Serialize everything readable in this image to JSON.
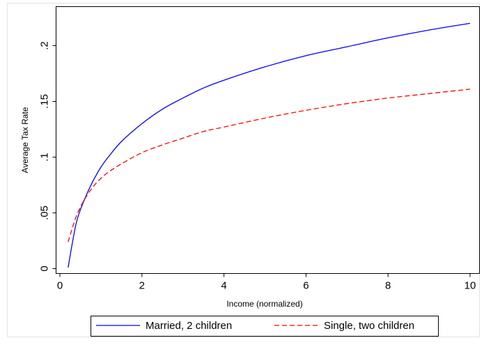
{
  "chart_data": {
    "type": "line",
    "title": "",
    "xlabel": "Income (normalized)",
    "ylabel": "Average Tax Rate",
    "xlim": [
      0,
      10
    ],
    "ylim": [
      0,
      0.22
    ],
    "x_ticks": [
      0,
      2,
      4,
      6,
      8,
      10
    ],
    "x_tick_labels": [
      "0",
      "2",
      "4",
      "6",
      "8",
      "10"
    ],
    "y_ticks": [
      0,
      0.05,
      0.1,
      0.15,
      0.2
    ],
    "y_tick_labels": [
      "0",
      ".05",
      ".1",
      ".15",
      ".2"
    ],
    "grid": false,
    "legend_position": "bottom",
    "series": [
      {
        "name": "Married, 2 children",
        "color": "#0000ff",
        "dash": "solid",
        "x": [
          0.2,
          0.4,
          0.6,
          0.8,
          1.0,
          1.2,
          1.5,
          2.0,
          2.5,
          3.0,
          3.5,
          4.0,
          5.0,
          6.0,
          7.0,
          8.0,
          9.0,
          10.0
        ],
        "y": [
          0.001,
          0.041,
          0.062,
          0.078,
          0.091,
          0.101,
          0.114,
          0.13,
          0.143,
          0.153,
          0.162,
          0.169,
          0.181,
          0.191,
          0.199,
          0.207,
          0.214,
          0.22
        ]
      },
      {
        "name": "Single, two children",
        "color": "#ff0000",
        "dash": "dashed",
        "x": [
          0.2,
          0.4,
          0.6,
          0.8,
          1.0,
          1.2,
          1.5,
          2.0,
          2.5,
          3.0,
          3.5,
          4.0,
          5.0,
          6.0,
          7.0,
          8.0,
          9.0,
          10.0
        ],
        "y": [
          0.024,
          0.047,
          0.062,
          0.073,
          0.081,
          0.087,
          0.094,
          0.104,
          0.111,
          0.117,
          0.123,
          0.127,
          0.135,
          0.142,
          0.148,
          0.153,
          0.157,
          0.161
        ]
      }
    ]
  }
}
